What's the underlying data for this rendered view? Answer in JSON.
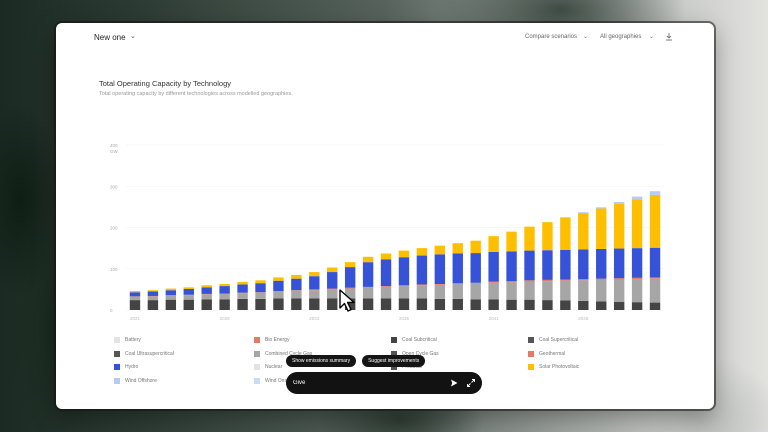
{
  "topbar": {
    "scenario_name": "New one",
    "compare_label": "Compare scenarios",
    "geo_label": "All geographies",
    "caret_icon": "chevron-down-icon",
    "download_icon": "download-icon"
  },
  "chart": {
    "title": "Total Operating Capacity by Technology",
    "subtitle": "Total operating capacity by different technologies across modelled geographies."
  },
  "chart_data": {
    "type": "bar",
    "stacked": true,
    "title": "Total Operating Capacity by Technology",
    "subtitle": "Total operating capacity by different technologies across modelled geographies.",
    "y_ticks": [
      "0",
      "100",
      "200",
      "300",
      "400"
    ],
    "y_axis_unit_label": "GW",
    "ylim": [
      0,
      400
    ],
    "x_tick_labels": [
      "2021",
      "2026",
      "2031",
      "2036",
      "2041",
      "2046"
    ],
    "categories": [
      "2021",
      "2022",
      "2023",
      "2024",
      "2025",
      "2026",
      "2027",
      "2028",
      "2029",
      "2030",
      "2031",
      "2032",
      "2033",
      "2034",
      "2035",
      "2036",
      "2037",
      "2038",
      "2039",
      "2040",
      "2041",
      "2042",
      "2043",
      "2044",
      "2045",
      "2046",
      "2047",
      "2048",
      "2049",
      "2050"
    ],
    "series": [
      {
        "name": "Coal Subcritical",
        "color": "#444444",
        "values": [
          24,
          24,
          25,
          25,
          26,
          26,
          27,
          27,
          28,
          28,
          28,
          28,
          28,
          28,
          28,
          28,
          28,
          27,
          27,
          26,
          26,
          25,
          25,
          24,
          23,
          22,
          21,
          20,
          19,
          18
        ]
      },
      {
        "name": "Combined Cycle Gas",
        "color": "#a6a6a6",
        "values": [
          8,
          9,
          10,
          11,
          12,
          13,
          14,
          15,
          17,
          19,
          20,
          22,
          24,
          26,
          28,
          30,
          32,
          34,
          36,
          38,
          40,
          42,
          44,
          46,
          48,
          50,
          52,
          54,
          56,
          58
        ]
      },
      {
        "name": "Geothermal",
        "color": "#e27c63",
        "values": [
          1,
          1,
          1,
          1,
          1,
          1,
          1,
          1,
          1,
          1,
          2,
          2,
          2,
          2,
          2,
          2,
          2,
          2,
          2,
          2,
          3,
          3,
          3,
          3,
          3,
          3,
          3,
          3,
          3,
          3
        ]
      },
      {
        "name": "Hydro",
        "color": "#3653d8",
        "values": [
          10,
          11,
          12,
          14,
          16,
          18,
          20,
          22,
          25,
          28,
          32,
          40,
          50,
          60,
          65,
          68,
          70,
          72,
          72,
          72,
          72,
          72,
          72,
          72,
          72,
          72,
          72,
          72,
          72,
          72
        ]
      },
      {
        "name": "Solar Photovoltaic",
        "color": "#fdbf00",
        "values": [
          3,
          3,
          4,
          4,
          5,
          5,
          6,
          7,
          8,
          9,
          10,
          11,
          12,
          13,
          14,
          16,
          18,
          21,
          25,
          30,
          38,
          48,
          58,
          68,
          78,
          88,
          98,
          108,
          118,
          128
        ]
      },
      {
        "name": "Wind Offshore",
        "color": "#b3cdf2",
        "values": [
          0,
          0,
          0,
          0,
          0,
          0,
          0,
          0,
          0,
          0,
          0,
          0,
          0,
          0,
          0,
          0,
          0,
          0,
          0,
          0,
          0,
          0,
          0,
          0,
          1,
          2,
          3,
          5,
          7,
          9
        ]
      }
    ]
  },
  "legend": [
    {
      "label": "Battery",
      "color": "#e3e3e3"
    },
    {
      "label": "Bio Energy",
      "color": "#e27c63"
    },
    {
      "label": "Coal Subcritical",
      "color": "#444444"
    },
    {
      "label": "Coal Supercritical",
      "color": "#555555"
    },
    {
      "label": "Coal Ultrasupercritical",
      "color": "#555555"
    },
    {
      "label": "Combined Cycle Gas",
      "color": "#a6a6a6"
    },
    {
      "label": "Open Cycle Gas",
      "color": "#555555"
    },
    {
      "label": "Geothermal",
      "color": "#e27c63"
    },
    {
      "label": "Hydro",
      "color": "#3653d8"
    },
    {
      "label": "Nuclear",
      "color": "#e3e3e3"
    },
    {
      "label": "Products",
      "color": "#555555"
    },
    {
      "label": "Solar Photovoltaic",
      "color": "#fdbf00"
    },
    {
      "label": "Wind Offshore",
      "color": "#b3cdf2"
    },
    {
      "label": "Wind Ons",
      "color": "#c9dbf5"
    }
  ],
  "assistant": {
    "suggestions": [
      "Show emissions summary",
      "Suggest improvements"
    ],
    "input_value": "Give",
    "send_icon": "send-icon",
    "expand_icon": "expand-icon"
  }
}
